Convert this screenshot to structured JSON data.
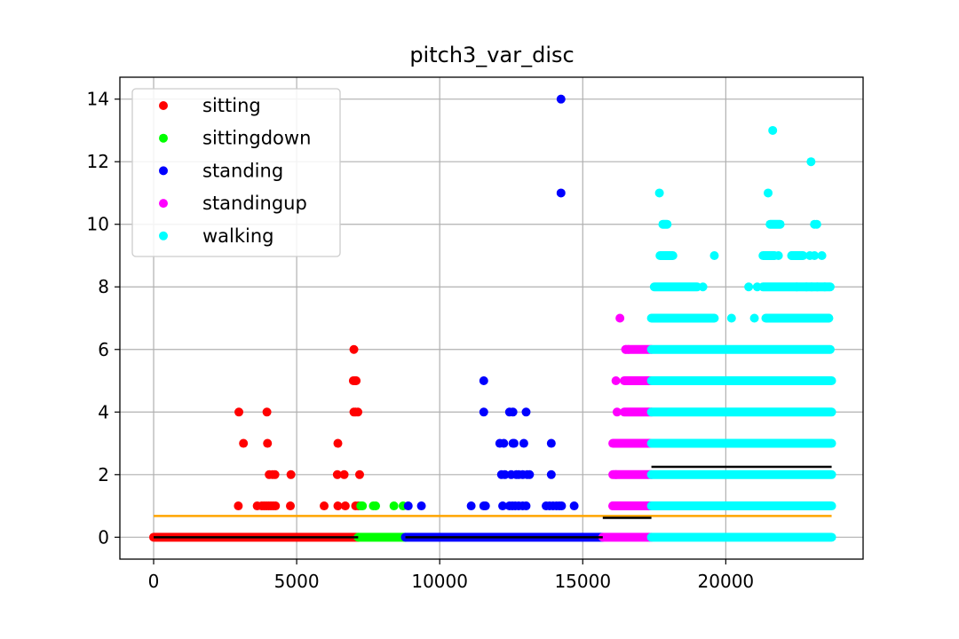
{
  "chart_data": {
    "type": "scatter",
    "title": "pitch3_var_disc",
    "xlabel": "",
    "ylabel": "",
    "xlim": [
      -1180,
      24800
    ],
    "ylim": [
      -0.7,
      14.7
    ],
    "xticks": [
      0,
      5000,
      10000,
      15000,
      20000
    ],
    "xtick_labels": [
      "0",
      "5000",
      "10000",
      "15000",
      "20000"
    ],
    "yticks": [
      0,
      2,
      4,
      6,
      8,
      10,
      12,
      14
    ],
    "ytick_labels": [
      "0",
      "2",
      "4",
      "6",
      "8",
      "10",
      "12",
      "14"
    ],
    "grid": true,
    "legend_position": "top-left",
    "series": [
      {
        "name": "sitting",
        "color": "#ff0000",
        "range": [
          0,
          7150
        ],
        "bands": [
          [
            0,
            0,
            7150
          ]
        ],
        "points": [
          [
            2980,
            4
          ],
          [
            3960,
            4
          ],
          [
            3140,
            3
          ],
          [
            3980,
            3
          ],
          [
            6440,
            3
          ],
          [
            7000,
            6
          ],
          [
            6980,
            5
          ],
          [
            7040,
            5
          ],
          [
            7080,
            5
          ],
          [
            7000,
            4
          ],
          [
            7060,
            4
          ],
          [
            7140,
            4
          ],
          [
            4040,
            2
          ],
          [
            4160,
            2
          ],
          [
            4240,
            2
          ],
          [
            4800,
            2
          ],
          [
            6420,
            2
          ],
          [
            6660,
            2
          ],
          [
            7200,
            2
          ],
          [
            2960,
            1
          ],
          [
            3620,
            1
          ],
          [
            3780,
            1
          ],
          [
            3860,
            1
          ],
          [
            3940,
            1
          ],
          [
            4020,
            1
          ],
          [
            4100,
            1
          ],
          [
            4180,
            1
          ],
          [
            4260,
            1
          ],
          [
            4780,
            1
          ],
          [
            5960,
            1
          ],
          [
            6440,
            1
          ],
          [
            6700,
            1
          ],
          [
            7060,
            1
          ],
          [
            7160,
            1
          ]
        ]
      },
      {
        "name": "sittingdown",
        "color": "#00ff00",
        "range": [
          7150,
          8800
        ],
        "bands": [
          [
            0,
            7150,
            8800
          ]
        ],
        "points": [
          [
            7240,
            1
          ],
          [
            7300,
            1
          ],
          [
            7680,
            1
          ],
          [
            7760,
            1
          ],
          [
            8400,
            1
          ],
          [
            8720,
            1
          ]
        ]
      },
      {
        "name": "standing",
        "color": "#0000ff",
        "range": [
          8800,
          15700
        ],
        "bands": [
          [
            0,
            8800,
            15700
          ]
        ],
        "points": [
          [
            14240,
            14
          ],
          [
            14240,
            11
          ],
          [
            11540,
            5
          ],
          [
            11540,
            4
          ],
          [
            12440,
            4
          ],
          [
            12560,
            4
          ],
          [
            13020,
            4
          ],
          [
            12100,
            3
          ],
          [
            12240,
            3
          ],
          [
            12560,
            3
          ],
          [
            12600,
            3
          ],
          [
            12940,
            3
          ],
          [
            13900,
            3
          ],
          [
            12160,
            2
          ],
          [
            12280,
            2
          ],
          [
            12500,
            2
          ],
          [
            12680,
            2
          ],
          [
            12760,
            2
          ],
          [
            12900,
            2
          ],
          [
            13060,
            2
          ],
          [
            13140,
            2
          ],
          [
            13900,
            2
          ],
          [
            8900,
            1
          ],
          [
            9360,
            1
          ],
          [
            11100,
            1
          ],
          [
            11540,
            1
          ],
          [
            11600,
            1
          ],
          [
            12200,
            1
          ],
          [
            12440,
            1
          ],
          [
            12540,
            1
          ],
          [
            12640,
            1
          ],
          [
            12760,
            1
          ],
          [
            12900,
            1
          ],
          [
            13020,
            1
          ],
          [
            13720,
            1
          ],
          [
            13840,
            1
          ],
          [
            13960,
            1
          ],
          [
            14080,
            1
          ],
          [
            14180,
            1
          ],
          [
            14260,
            1
          ],
          [
            14700,
            1
          ]
        ]
      },
      {
        "name": "standingup",
        "color": "#ff00ff",
        "range": [
          15700,
          17400
        ],
        "bands": [
          [
            0,
            15700,
            17400
          ],
          [
            1,
            16050,
            17400
          ],
          [
            2,
            16050,
            17400
          ],
          [
            3,
            16050,
            17400
          ],
          [
            4,
            16450,
            17400
          ],
          [
            5,
            16450,
            17400
          ],
          [
            6,
            16500,
            17400
          ]
        ],
        "points": [
          [
            16300,
            7
          ],
          [
            16500,
            6
          ],
          [
            16600,
            6
          ],
          [
            16160,
            5
          ],
          [
            16200,
            4
          ],
          [
            16200,
            3
          ],
          [
            16160,
            2
          ],
          [
            16050,
            1
          ]
        ]
      },
      {
        "name": "walking",
        "color": "#00ffff",
        "range": [
          17400,
          23700
        ],
        "bands": [
          [
            0,
            17400,
            23700
          ],
          [
            1,
            17400,
            23700
          ],
          [
            2,
            17400,
            23700
          ],
          [
            3,
            17400,
            23700
          ],
          [
            4,
            17400,
            23700
          ],
          [
            5,
            17400,
            23700
          ],
          [
            6,
            17400,
            23650
          ],
          [
            7,
            17400,
            19600
          ],
          [
            7,
            21400,
            23600
          ],
          [
            8,
            17500,
            19000
          ],
          [
            8,
            21300,
            23650
          ],
          [
            9,
            17700,
            18150
          ],
          [
            9,
            21300,
            21700
          ],
          [
            9,
            22300,
            22700
          ],
          [
            10,
            17800,
            17950
          ],
          [
            10,
            21550,
            21900
          ]
        ],
        "points": [
          [
            17680,
            11
          ],
          [
            21480,
            11
          ],
          [
            21640,
            13
          ],
          [
            22980,
            12
          ],
          [
            23100,
            10
          ],
          [
            23180,
            10
          ],
          [
            22940,
            9
          ],
          [
            23100,
            9
          ],
          [
            23360,
            9
          ],
          [
            19600,
            9
          ],
          [
            21680,
            9
          ],
          [
            21840,
            9
          ],
          [
            19200,
            8
          ],
          [
            20800,
            8
          ],
          [
            21100,
            8
          ],
          [
            22480,
            8
          ],
          [
            22820,
            8
          ],
          [
            23000,
            8
          ],
          [
            23200,
            8
          ],
          [
            23460,
            8
          ],
          [
            18000,
            7
          ],
          [
            18600,
            7
          ],
          [
            19200,
            7
          ],
          [
            20200,
            7
          ],
          [
            21000,
            7
          ],
          [
            23600,
            7
          ]
        ]
      }
    ],
    "reference_lines": [
      {
        "color": "#ffa500",
        "y": 0.68,
        "x_range": [
          0,
          23700
        ]
      },
      {
        "color": "#000000",
        "y": 0,
        "x_range": [
          0,
          7150
        ]
      },
      {
        "color": "#000000",
        "y": 0,
        "x_range": [
          8800,
          15700
        ]
      },
      {
        "color": "#000000",
        "y": 2.25,
        "x_range": [
          17400,
          23700
        ]
      },
      {
        "color": "#000000",
        "y": 0.62,
        "x_range": [
          15700,
          17400
        ]
      }
    ]
  }
}
